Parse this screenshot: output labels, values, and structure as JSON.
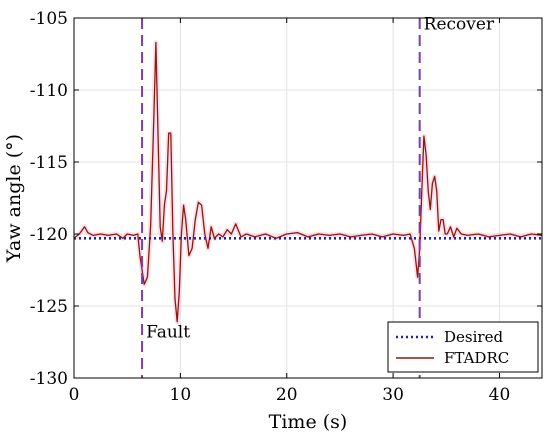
{
  "chart_data": {
    "type": "line",
    "xlabel": "Time (s)",
    "ylabel": "Yaw angle (°)",
    "xlim": [
      0,
      44
    ],
    "ylim": [
      -130,
      -105
    ],
    "xticks": [
      0,
      10,
      20,
      30,
      40
    ],
    "yticks": [
      -130,
      -125,
      -120,
      -115,
      -110,
      -105
    ],
    "grid": true,
    "legend_position": "bottom-right",
    "series": [
      {
        "name": "Desired",
        "style": "dotted",
        "color": "#1f1fbf",
        "x": [
          0,
          44
        ],
        "y": [
          -120.3,
          -120.3
        ]
      },
      {
        "name": "FTADRC",
        "style": "solid",
        "color": "#8b1a0e",
        "x": [
          0,
          0.5,
          1.0,
          1.3,
          1.8,
          2.5,
          3.2,
          4.0,
          4.6,
          5.0,
          5.6,
          6.0,
          6.2,
          6.4,
          6.6,
          6.9,
          7.2,
          7.5,
          7.7,
          7.9,
          8.1,
          8.3,
          8.5,
          8.7,
          8.9,
          9.1,
          9.3,
          9.5,
          9.7,
          9.9,
          10.1,
          10.3,
          10.5,
          10.8,
          11.1,
          11.4,
          11.7,
          12.0,
          12.3,
          12.6,
          12.9,
          13.2,
          13.6,
          14.0,
          14.4,
          14.8,
          15.2,
          15.7,
          16.2,
          17.0,
          18.0,
          19.0,
          20.0,
          21.0,
          22.0,
          23.0,
          24.0,
          25.0,
          26.0,
          27.0,
          28.0,
          29.0,
          30.0,
          31.0,
          31.6,
          32.0,
          32.3,
          32.5,
          32.7,
          32.9,
          33.1,
          33.3,
          33.5,
          33.7,
          33.9,
          34.1,
          34.3,
          34.5,
          34.7,
          34.9,
          35.1,
          35.4,
          35.7,
          36.0,
          36.4,
          37.0,
          38.0,
          39.0,
          40.0,
          41.0,
          42.0,
          43.0,
          44.0
        ],
        "y": [
          -120.3,
          -120.0,
          -119.5,
          -119.9,
          -120.1,
          -120.0,
          -120.1,
          -120.0,
          -120.3,
          -120.0,
          -120.1,
          -120.0,
          -121.5,
          -122.5,
          -123.5,
          -123.0,
          -119.5,
          -112.0,
          -106.7,
          -113.0,
          -119.5,
          -120.5,
          -118.0,
          -117.0,
          -113.0,
          -113.0,
          -120.0,
          -124.5,
          -126.1,
          -124.0,
          -120.0,
          -118.0,
          -119.0,
          -121.5,
          -121.0,
          -119.0,
          -117.8,
          -118.0,
          -120.0,
          -121.0,
          -119.5,
          -120.3,
          -120.0,
          -120.2,
          -119.7,
          -120.0,
          -119.3,
          -120.2,
          -120.0,
          -120.2,
          -120.0,
          -120.3,
          -120.0,
          -119.9,
          -120.2,
          -120.0,
          -120.1,
          -120.0,
          -120.2,
          -120.1,
          -120.0,
          -120.2,
          -120.0,
          -120.1,
          -120.0,
          -121.0,
          -123.0,
          -121.0,
          -117.0,
          -113.2,
          -114.5,
          -117.0,
          -118.3,
          -116.5,
          -116.0,
          -117.0,
          -119.8,
          -119.0,
          -119.0,
          -120.0,
          -120.0,
          -119.5,
          -120.2,
          -119.6,
          -120.0,
          -120.1,
          -120.0,
          -120.2,
          -120.1,
          -120.0,
          -120.2,
          -120.0,
          -120.1
        ]
      }
    ],
    "vlines": [
      {
        "x": 6.4,
        "label": "Fault",
        "color": "#7a3ea8"
      },
      {
        "x": 32.5,
        "label": "Recover",
        "color": "#7a3ea8"
      }
    ]
  }
}
